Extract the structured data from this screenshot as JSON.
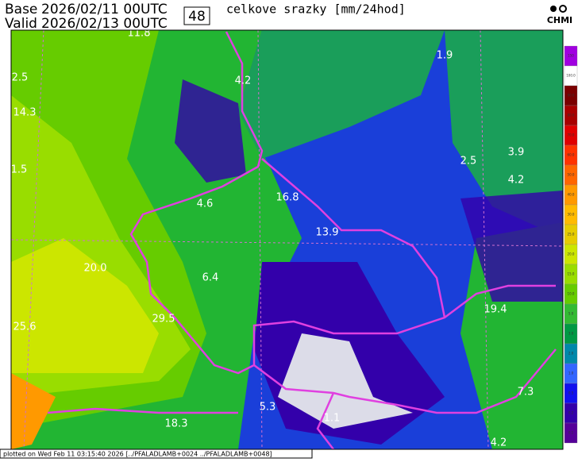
{
  "header": {
    "base_label": "Base",
    "base_time": "2026/02/11 00UTC",
    "valid_label": "Valid",
    "valid_time": "2026/02/13 00UTC",
    "lead": "48",
    "title": "celkove srazky [mm/24hod]",
    "logo": "CHMI"
  },
  "map": {
    "labels": [
      "11.8",
      "2.5",
      "14.3",
      "1.5",
      "20.0",
      "25.6",
      "4.2",
      "4.6",
      "16.8",
      "13.9",
      "6.4",
      "29.5",
      "18.3",
      "5.3",
      "1.1",
      "1.9",
      "2.5",
      "3.9",
      "4.2",
      "19.4",
      "7.3",
      "4.2"
    ]
  },
  "legend": [
    {
      "label": "150",
      "color": "#a000e0"
    },
    {
      "label": "100.0",
      "color": "#ffffff"
    },
    {
      "label": "90.0",
      "color": "#7a0000"
    },
    {
      "label": "80.0",
      "color": "#a80000"
    },
    {
      "label": "70.0",
      "color": "#e00000"
    },
    {
      "label": "60.0",
      "color": "#ff3300"
    },
    {
      "label": "50.0",
      "color": "#ff6600"
    },
    {
      "label": "40.0",
      "color": "#ff9900"
    },
    {
      "label": "30.0",
      "color": "#ffbb00"
    },
    {
      "label": "25.0",
      "color": "#e6cc00"
    },
    {
      "label": "20.0",
      "color": "#cce600"
    },
    {
      "label": "15.0",
      "color": "#99dd00"
    },
    {
      "label": "10.0",
      "color": "#66cc00"
    },
    {
      "label": "5.0",
      "color": "#33bb33"
    },
    {
      "label": "3.0",
      "color": "#009944"
    },
    {
      "label": "2.0",
      "color": "#0088aa"
    },
    {
      "label": "1.0",
      "color": "#3366ff"
    },
    {
      "label": "0.5",
      "color": "#1111ee"
    },
    {
      "label": "0.2",
      "color": "#3300aa"
    },
    {
      "label": "0.1",
      "color": "#550099"
    }
  ],
  "footer": "plotted on Wed Feb 11 03:15:40 2026 [../PFALADLAMB+0024 ../PFALADLAMB+0048]"
}
